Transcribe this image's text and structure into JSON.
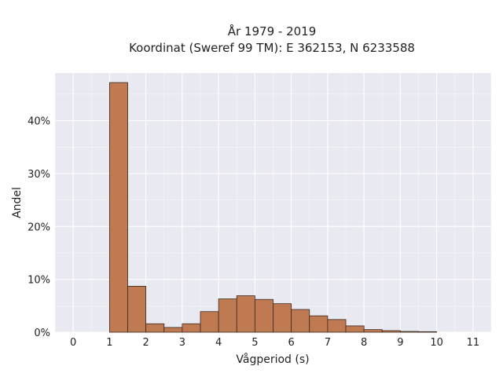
{
  "chart_data": {
    "type": "bar",
    "title_line1": "År 1979 - 2019",
    "title_line2": "Koordinat (Sweref 99 TM): E 362153, N 6233588",
    "xlabel": "Vågperiod (s)",
    "ylabel": "Andel",
    "xlim": [
      -0.5,
      11.5
    ],
    "ylim": [
      0,
      49
    ],
    "x_ticks": [
      0,
      1,
      2,
      3,
      4,
      5,
      6,
      7,
      8,
      9,
      10,
      11
    ],
    "y_ticks": [
      0,
      10,
      20,
      30,
      40
    ],
    "y_tick_labels": [
      "0%",
      "10%",
      "20%",
      "30%",
      "40%"
    ],
    "bin_width": 0.5,
    "bins": [
      {
        "start": 1.0,
        "value": 47.2
      },
      {
        "start": 1.5,
        "value": 8.7
      },
      {
        "start": 2.0,
        "value": 1.6
      },
      {
        "start": 2.5,
        "value": 0.9
      },
      {
        "start": 3.0,
        "value": 1.6
      },
      {
        "start": 3.5,
        "value": 3.9
      },
      {
        "start": 4.0,
        "value": 6.3
      },
      {
        "start": 4.5,
        "value": 6.9
      },
      {
        "start": 5.0,
        "value": 6.2
      },
      {
        "start": 5.5,
        "value": 5.4
      },
      {
        "start": 6.0,
        "value": 4.3
      },
      {
        "start": 6.5,
        "value": 3.1
      },
      {
        "start": 7.0,
        "value": 2.4
      },
      {
        "start": 7.5,
        "value": 1.2
      },
      {
        "start": 8.0,
        "value": 0.5
      },
      {
        "start": 8.5,
        "value": 0.3
      },
      {
        "start": 9.0,
        "value": 0.15
      },
      {
        "start": 9.5,
        "value": 0.1
      }
    ],
    "grid": true,
    "colors": {
      "bar_fill": "#c07a52",
      "bar_edge": "#3a2a20",
      "plot_bg": "#e9e9f1",
      "grid": "#ffffff"
    }
  }
}
